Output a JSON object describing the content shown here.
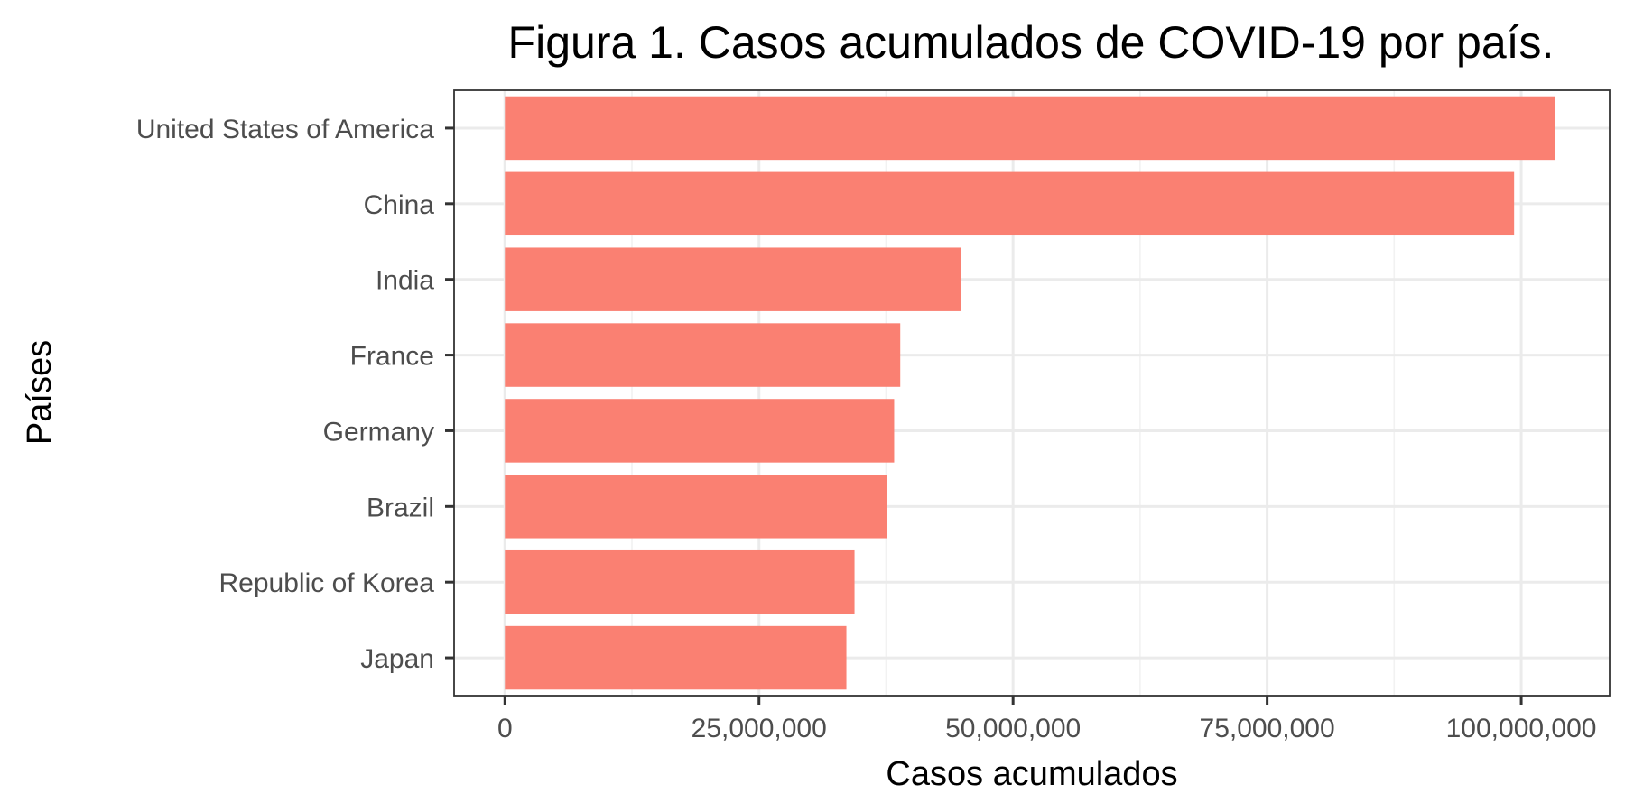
{
  "chart_data": {
    "type": "bar",
    "orientation": "horizontal",
    "title": "Figura 1. Casos acumulados de COVID-19 por país.",
    "xlabel": "Casos acumulados",
    "ylabel": "Países",
    "categories": [
      "United States of America",
      "China",
      "India",
      "France",
      "Germany",
      "Brazil",
      "Republic of Korea",
      "Japan"
    ],
    "values": [
      103300000,
      99300000,
      44900000,
      38900000,
      38300000,
      37600000,
      34400000,
      33600000
    ],
    "xlim": [
      -5000000,
      108700000
    ],
    "xticks": [
      0,
      25000000,
      50000000,
      75000000,
      100000000
    ],
    "xtick_labels": [
      "0",
      "25,000,000",
      "50,000,000",
      "75,000,000",
      "100,000,000"
    ],
    "grid": true,
    "legend": "none",
    "colors": {
      "bar": "#FA8072",
      "panel_border": "#333333",
      "grid_major": "#EBEBEB",
      "grid_minor": "#F2F2F2",
      "tick_mark": "#333333",
      "tick_label": "#4D4D4D"
    }
  }
}
